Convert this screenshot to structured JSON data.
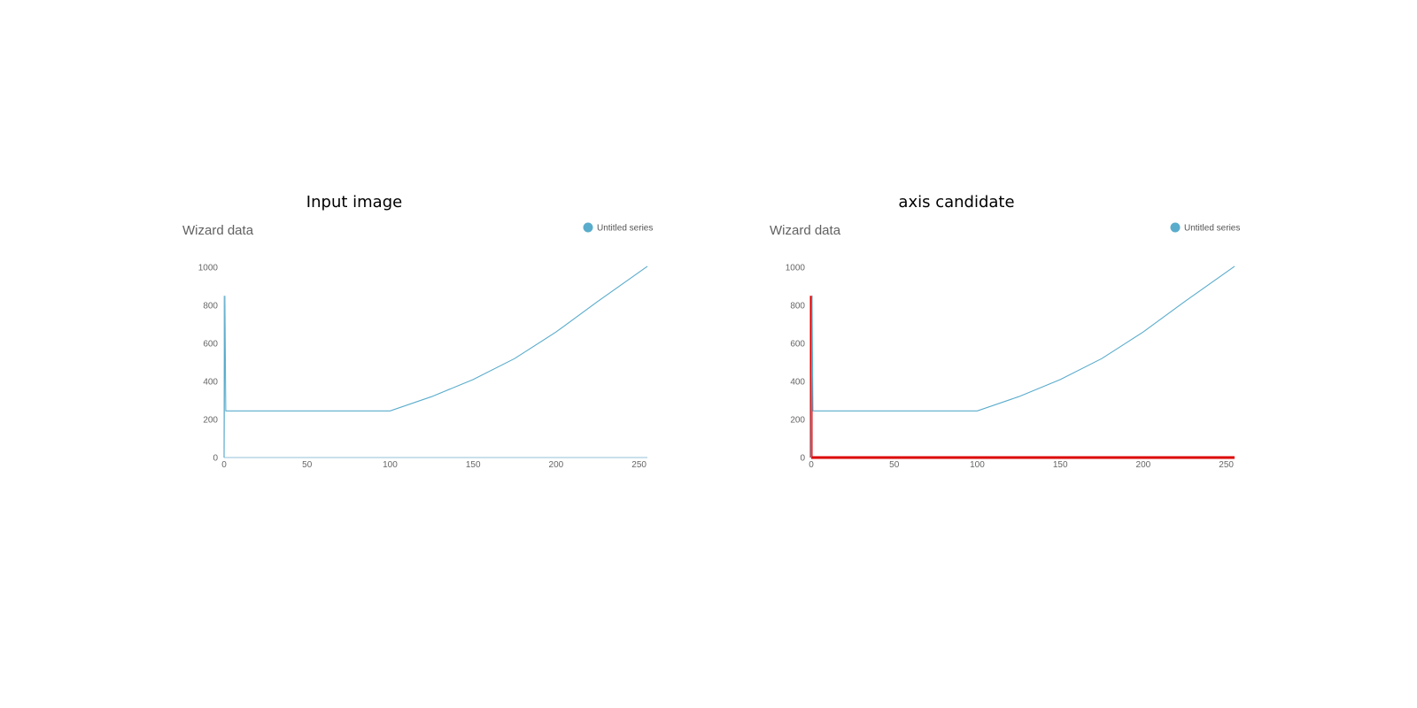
{
  "panels": [
    {
      "title": "Input image",
      "highlight_axes": false,
      "chart": {
        "title": "Wizard data",
        "legend": "Untitled series",
        "x_ticks": [
          "0",
          "50",
          "100",
          "150",
          "200",
          "250"
        ],
        "y_ticks": [
          "0",
          "200",
          "400",
          "600",
          "800",
          "1000"
        ]
      }
    },
    {
      "title": "axis candidate",
      "highlight_axes": true,
      "chart": {
        "title": "Wizard data",
        "legend": "Untitled series",
        "x_ticks": [
          "0",
          "50",
          "100",
          "150",
          "200",
          "250"
        ],
        "y_ticks": [
          "0",
          "200",
          "400",
          "600",
          "800",
          "1000"
        ]
      }
    }
  ],
  "chart_data": {
    "type": "line",
    "title": "Wizard data",
    "series": [
      {
        "name": "Untitled series",
        "color": "#5aaccc",
        "x": [
          0,
          0.5,
          1,
          50,
          100,
          125,
          150,
          175,
          200,
          225,
          255
        ],
        "y": [
          0,
          850,
          245,
          245,
          245,
          320,
          410,
          520,
          660,
          820,
          1005
        ]
      }
    ],
    "xlim": [
      0,
      255
    ],
    "ylim": [
      0,
      1000
    ],
    "grid": false,
    "legend_position": "top-right",
    "colors": {
      "axis_highlight": "#dd0000",
      "axis": "#a9cde0"
    }
  }
}
